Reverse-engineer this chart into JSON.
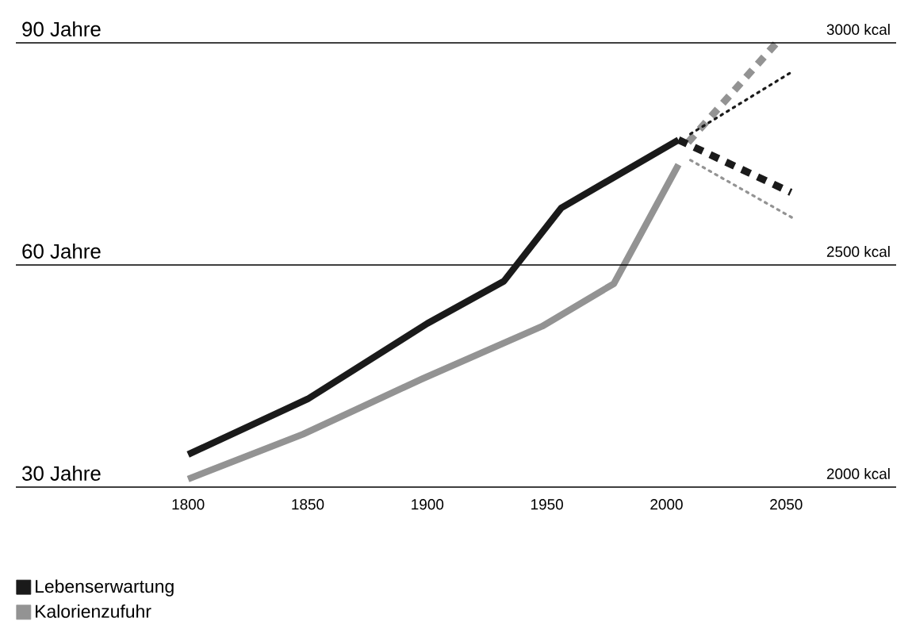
{
  "chart_data": {
    "type": "line",
    "x": [
      1800,
      1850,
      1900,
      1932,
      1956,
      2005
    ],
    "xlim": [
      1728,
      2096
    ],
    "xticks": [
      1800,
      1850,
      1900,
      1950,
      2000,
      2050
    ],
    "ylim": [
      30,
      90
    ],
    "yticks": [
      {
        "value": 30,
        "label": "30 Jahre"
      },
      {
        "value": 60,
        "label": "60 Jahre"
      },
      {
        "value": 90,
        "label": "90 Jahre"
      }
    ],
    "y2lim": [
      2000,
      3000
    ],
    "y2ticks": [
      {
        "value": 2000,
        "label": "2000 kcal"
      },
      {
        "value": 2500,
        "label": "2500 kcal"
      },
      {
        "value": 3000,
        "label": "3000 kcal"
      }
    ],
    "grid": "y",
    "legend": "bottom left",
    "series": [
      {
        "name": "Lebenserwartung",
        "color": "#1a1a1a",
        "line_style": "solid",
        "values": [
          34.4,
          41.9,
          52.1,
          57.8,
          67.7,
          76.9
        ]
      },
      {
        "name": "Kalorienzufuhr",
        "color": "#939393",
        "line_style": "solid",
        "axis": "y2",
        "x": [
          1800,
          1848,
          1898,
          1948,
          1978,
          2005
        ],
        "values": [
          2018,
          2119,
          2244,
          2362,
          2458,
          2726
        ]
      },
      {
        "color": "#1a1a1a",
        "line_style": "dashed",
        "x": [
          2005,
          2052
        ],
        "values": [
          76.9,
          69.8
        ]
      },
      {
        "color": "#1a1a1a",
        "line_style": "dotted",
        "x": [
          2010,
          2052
        ],
        "values": [
          77.7,
          86.0
        ]
      },
      {
        "color": "#939393",
        "line_style": "dashed",
        "axis": "y2",
        "x": [
          2009,
          2046
        ],
        "values": [
          2776,
          3000
        ]
      },
      {
        "color": "#939393",
        "line_style": "dotted",
        "axis": "y2",
        "x": [
          2010,
          2053
        ],
        "values": [
          2736,
          2605
        ]
      }
    ]
  }
}
